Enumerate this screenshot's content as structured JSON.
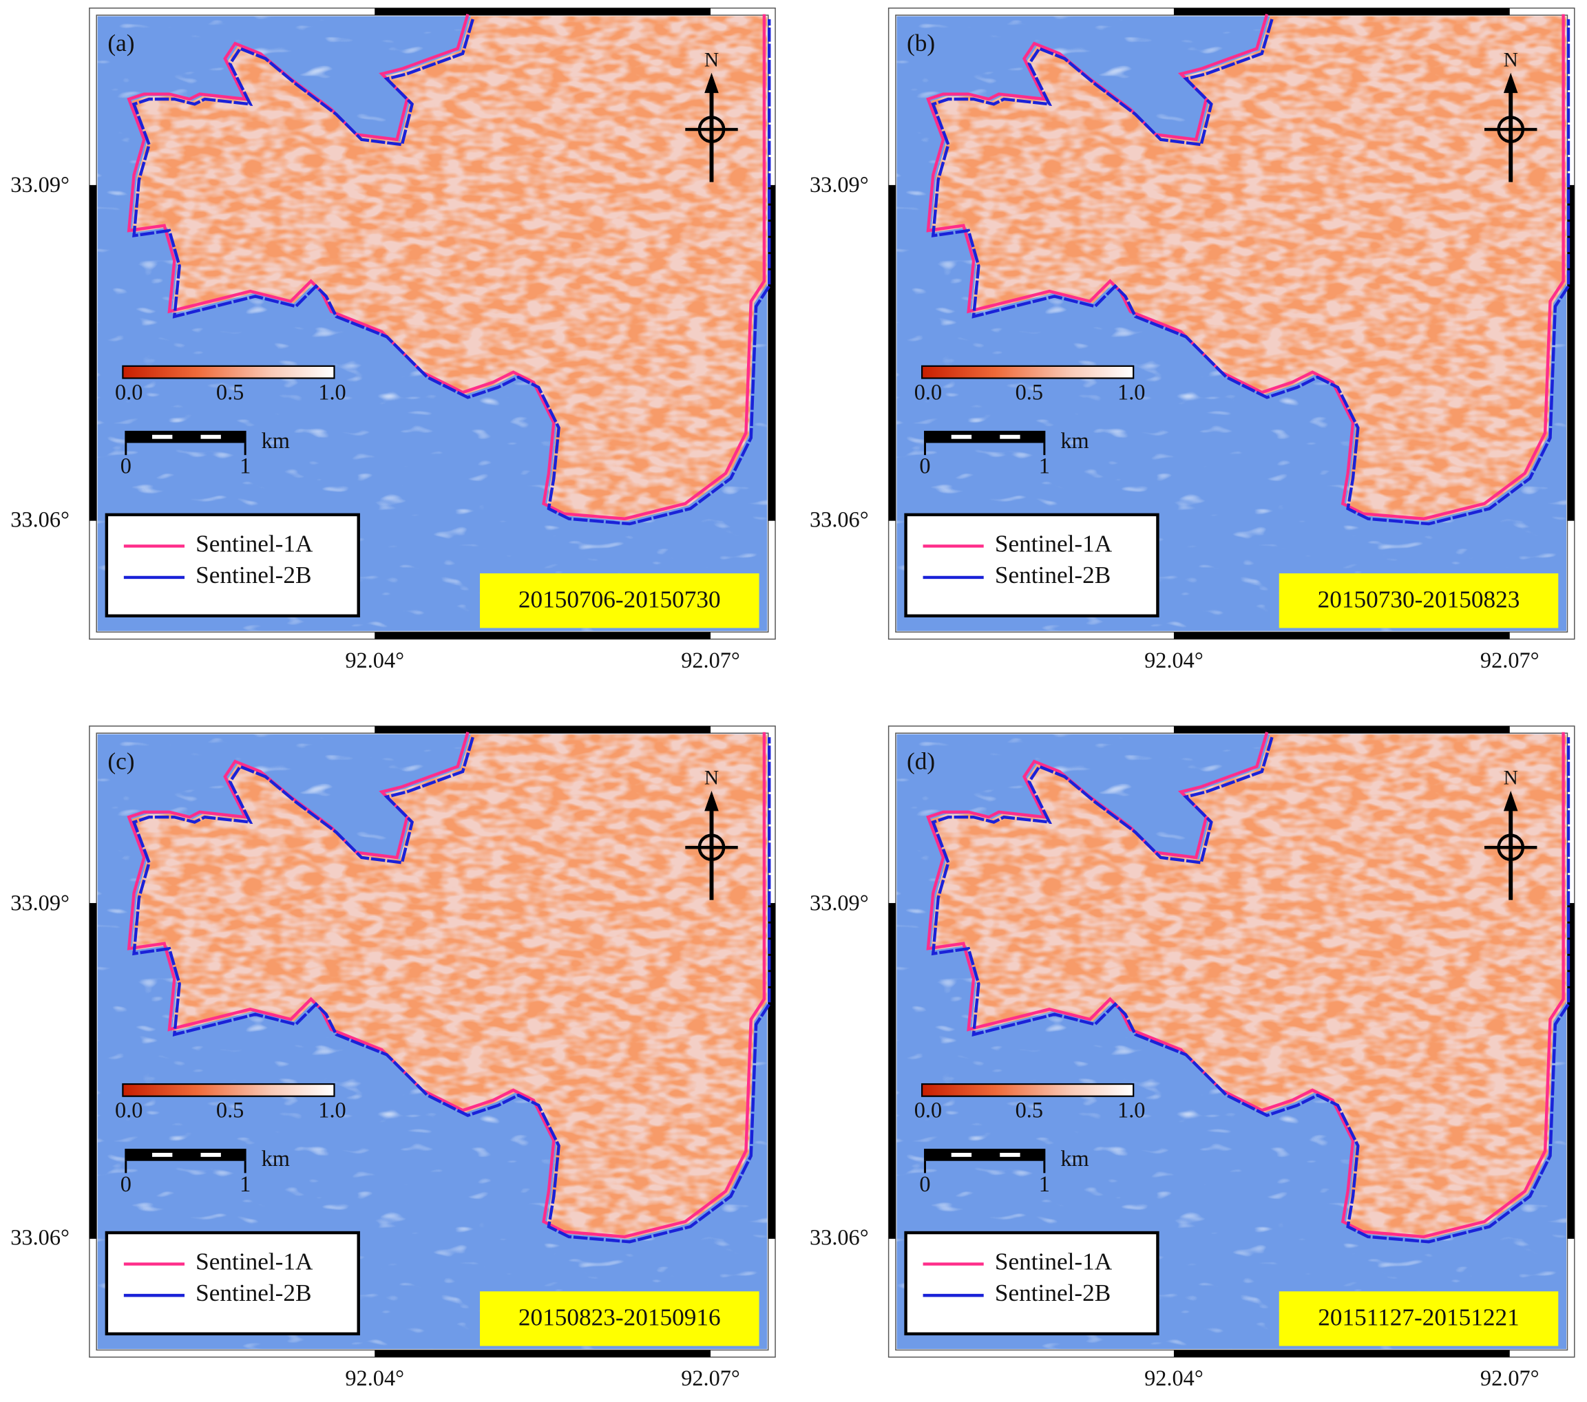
{
  "panels": [
    {
      "label": "(a)",
      "date_range": "20150706-20150730"
    },
    {
      "label": "(b)",
      "date_range": "20150730-20150823"
    },
    {
      "label": "(c)",
      "date_range": "20150823-20150916"
    },
    {
      "label": "(d)",
      "date_range": "20151127-20151221"
    }
  ],
  "legend": [
    {
      "name": "Sentinel-1A",
      "color": "#ff2d8a"
    },
    {
      "name": "Sentinel-2B",
      "color": "#1a22d8"
    }
  ],
  "colorbar_ticks": [
    "0.0",
    "0.5",
    "1.0"
  ],
  "scale_bar": {
    "labels": [
      "0",
      "1"
    ],
    "unit": "km"
  },
  "north_label": "N",
  "lat_labels": [
    "33.09°",
    "33.06°"
  ],
  "lon_labels": [
    "92.04°",
    "92.07°"
  ]
}
